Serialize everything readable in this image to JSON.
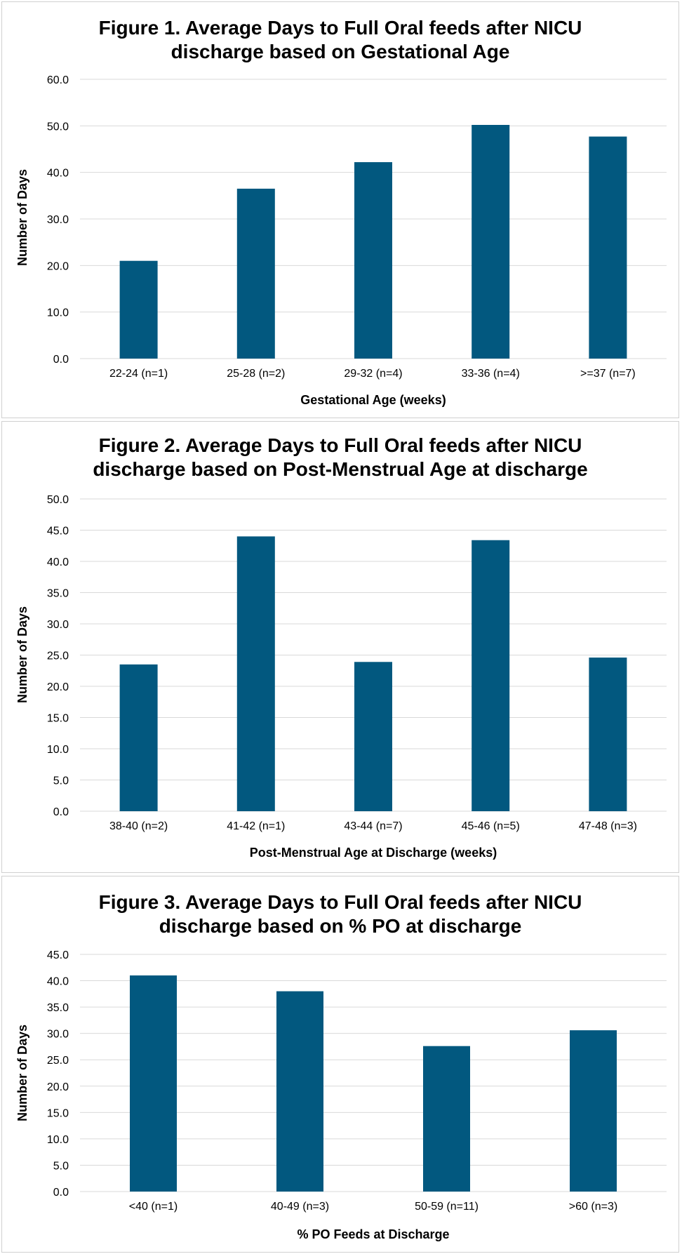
{
  "chart_data": [
    {
      "type": "bar",
      "title": "Figure 1. Average Days to Full Oral feeds after NICU\ndischarge based on Gestational Age",
      "categories": [
        "22-24 (n=1)",
        "25-28 (n=2)",
        "29-32 (n=4)",
        "33-36 (n=4)",
        ">=37 (n=7)"
      ],
      "values": [
        21.0,
        36.5,
        42.2,
        50.2,
        47.7
      ],
      "xlabel": "Gestational Age (weeks)",
      "ylabel": "Number of Days",
      "ylim": [
        0,
        60
      ],
      "yticks": [
        "0.0",
        "10.0",
        "20.0",
        "30.0",
        "40.0",
        "50.0",
        "60.0"
      ],
      "grid": true,
      "legend": "none",
      "bar_color": "#02587f"
    },
    {
      "type": "bar",
      "title": "Figure 2. Average Days to Full Oral feeds after NICU\ndischarge based on Post-Menstrual Age at discharge",
      "categories": [
        "38-40 (n=2)",
        "41-42 (n=1)",
        "43-44 (n=7)",
        "45-46 (n=5)",
        "47-48 (n=3)"
      ],
      "values": [
        23.5,
        44.0,
        23.9,
        43.4,
        24.6
      ],
      "xlabel": "Post-Menstrual Age at Discharge (weeks)",
      "ylabel": "Number of Days",
      "ylim": [
        0,
        50
      ],
      "yticks": [
        "0.0",
        "5.0",
        "10.0",
        "15.0",
        "20.0",
        "25.0",
        "30.0",
        "35.0",
        "40.0",
        "45.0",
        "50.0"
      ],
      "grid": true,
      "legend": "none",
      "bar_color": "#02587f"
    },
    {
      "type": "bar",
      "title": "Figure 3. Average Days to Full Oral feeds after NICU\ndischarge based on % PO at discharge",
      "categories": [
        "<40 (n=1)",
        "40-49 (n=3)",
        "50-59 (n=11)",
        ">60 (n=3)"
      ],
      "values": [
        41.0,
        38.0,
        27.6,
        30.6
      ],
      "xlabel": "% PO Feeds at Discharge",
      "ylabel": "Number of Days",
      "ylim": [
        0,
        45
      ],
      "yticks": [
        "0.0",
        "5.0",
        "10.0",
        "15.0",
        "20.0",
        "25.0",
        "30.0",
        "35.0",
        "40.0",
        "45.0"
      ],
      "grid": true,
      "legend": "none",
      "bar_color": "#02587f"
    }
  ]
}
